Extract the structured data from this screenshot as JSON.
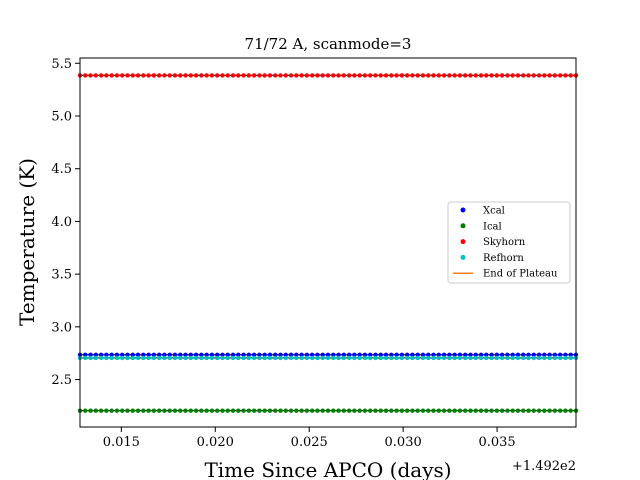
{
  "chart_data": {
    "type": "scatter",
    "title": "71/72 A, scanmode=3",
    "xlabel": "Time Since APCO (days)",
    "ylabel": "Temperature (K)",
    "x_offset_label": "+1.492e2",
    "xlim": [
      0.0128,
      0.0392
    ],
    "ylim": [
      2.05,
      5.55
    ],
    "x_ticks": [
      0.015,
      0.02,
      0.025,
      0.03,
      0.035
    ],
    "x_tick_labels": [
      "0.015",
      "0.020",
      "0.025",
      "0.030",
      "0.035"
    ],
    "y_ticks": [
      2.5,
      3.0,
      3.5,
      4.0,
      4.5,
      5.0,
      5.5
    ],
    "y_tick_labels": [
      "2.5",
      "3.0",
      "3.5",
      "4.0",
      "4.5",
      "5.0",
      "5.5"
    ],
    "x_start": 0.0128,
    "x_end": 0.0392,
    "n_points": 95,
    "series": [
      {
        "name": "Xcal",
        "color": "#0000ff",
        "value": 2.735,
        "marker": "point"
      },
      {
        "name": "Ical",
        "color": "#008000",
        "value": 2.205,
        "marker": "point"
      },
      {
        "name": "Skyhorn",
        "color": "#ff0000",
        "value": 5.385,
        "marker": "point"
      },
      {
        "name": "Refhorn",
        "color": "#00bfbf",
        "value": 2.705,
        "marker": "point"
      },
      {
        "name": "End of Plateau",
        "color": "#ff7f0e",
        "marker": "line"
      }
    ],
    "legend_placement": "center-right",
    "grid": false
  }
}
